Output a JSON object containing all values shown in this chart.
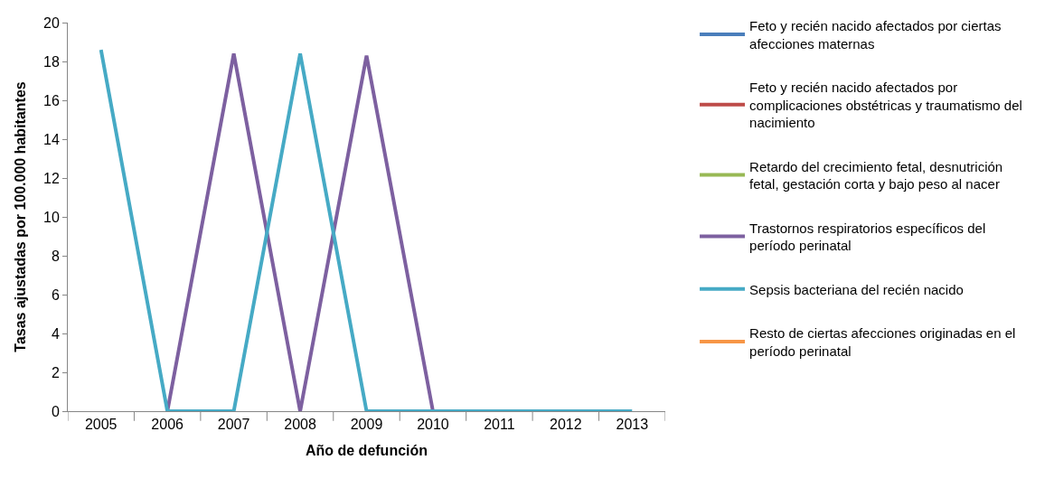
{
  "chart_data": {
    "type": "line",
    "xlabel": "Año de defunción",
    "ylabel": "Tasas ajustadas por 100.000 habitantes",
    "categories": [
      "2005",
      "2006",
      "2007",
      "2008",
      "2009",
      "2010",
      "2011",
      "2012",
      "2013"
    ],
    "ylim": [
      0,
      20
    ],
    "yticks": [
      0,
      2,
      4,
      6,
      8,
      10,
      12,
      14,
      16,
      18,
      20
    ],
    "legend": "right",
    "marker": "none",
    "line_style": "solid",
    "series": [
      {
        "name": "Feto y recién nacido afectados por ciertas afecciones maternas",
        "color": "#4a7ebb",
        "values": [
          null,
          null,
          null,
          null,
          null,
          null,
          null,
          null,
          null
        ]
      },
      {
        "name": "Feto y recién nacido afectados por complicaciones obstétricas y traumatismo del nacimiento",
        "color": "#be4b48",
        "values": [
          null,
          null,
          null,
          null,
          null,
          null,
          null,
          null,
          null
        ]
      },
      {
        "name": "Retardo del crecimiento fetal, desnutrición fetal, gestación corta y bajo peso al nacer",
        "color": "#98b954",
        "values": [
          null,
          null,
          null,
          null,
          null,
          null,
          null,
          null,
          null
        ]
      },
      {
        "name": "Trastornos respiratorios específicos del período perinatal",
        "color": "#7d60a0",
        "values": [
          null,
          0,
          18.4,
          0,
          18.3,
          0,
          null,
          null,
          null
        ]
      },
      {
        "name": "Sepsis bacteriana del recién nacido",
        "color": "#46aac5",
        "values": [
          18.6,
          0,
          0,
          18.4,
          0,
          0,
          0,
          0,
          0
        ]
      },
      {
        "name": "Resto de ciertas afecciones originadas en el período perinatal",
        "color": "#f79646",
        "values": [
          null,
          null,
          null,
          null,
          null,
          null,
          null,
          null,
          null
        ]
      }
    ]
  }
}
